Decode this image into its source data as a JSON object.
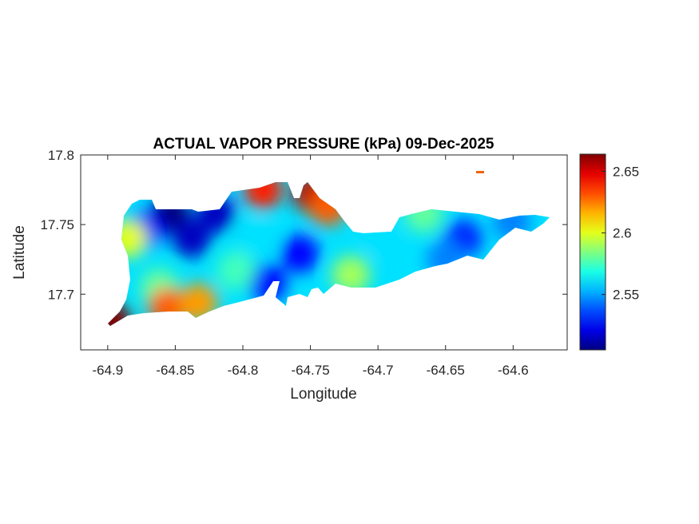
{
  "chart_data": {
    "type": "heatmap",
    "title": "ACTUAL VAPOR PRESSURE (kPa) 09-Dec-2025",
    "xlabel": "Longitude",
    "ylabel": "Latitude",
    "xlim": [
      -64.92,
      -64.56
    ],
    "ylim": [
      17.66,
      17.8
    ],
    "xticks": [
      -64.9,
      -64.85,
      -64.8,
      -64.75,
      -64.7,
      -64.65,
      -64.6
    ],
    "xtick_labels": [
      "-64.9",
      "-64.85",
      "-64.8",
      "-64.75",
      "-64.7",
      "-64.65",
      "-64.6"
    ],
    "yticks": [
      17.7,
      17.75,
      17.8
    ],
    "ytick_labels": [
      "17.7",
      "17.75",
      "17.8"
    ],
    "colormap": "jet",
    "colorbar": {
      "clim": [
        2.505,
        2.664
      ],
      "ticks": [
        2.55,
        2.6,
        2.65
      ],
      "tick_labels": [
        "2.55",
        "2.6",
        "2.65"
      ],
      "location": "right"
    },
    "grid": false,
    "background_value": 2.56,
    "points": [
      {
        "lon": -64.853,
        "lat": 17.758,
        "value": 2.505
      },
      {
        "lon": -64.838,
        "lat": 17.74,
        "value": 2.515
      },
      {
        "lon": -64.82,
        "lat": 17.758,
        "value": 2.515
      },
      {
        "lon": -64.873,
        "lat": 17.746,
        "value": 2.525
      },
      {
        "lon": -64.79,
        "lat": 17.74,
        "value": 2.56
      },
      {
        "lon": -64.758,
        "lat": 17.729,
        "value": 2.525
      },
      {
        "lon": -64.782,
        "lat": 17.708,
        "value": 2.525
      },
      {
        "lon": -64.749,
        "lat": 17.772,
        "value": 2.655
      },
      {
        "lon": -64.785,
        "lat": 17.775,
        "value": 2.64
      },
      {
        "lon": -64.737,
        "lat": 17.763,
        "value": 2.63
      },
      {
        "lon": -64.72,
        "lat": 17.714,
        "value": 2.59
      },
      {
        "lon": -64.862,
        "lat": 17.705,
        "value": 2.58
      },
      {
        "lon": -64.856,
        "lat": 17.691,
        "value": 2.63
      },
      {
        "lon": -64.833,
        "lat": 17.694,
        "value": 2.62
      },
      {
        "lon": -64.897,
        "lat": 17.681,
        "value": 2.664
      },
      {
        "lon": -64.696,
        "lat": 17.74,
        "value": 2.56
      },
      {
        "lon": -64.637,
        "lat": 17.74,
        "value": 2.53
      },
      {
        "lon": -64.601,
        "lat": 17.752,
        "value": 2.545
      },
      {
        "lon": -64.624,
        "lat": 17.789,
        "value": 2.63
      },
      {
        "lon": -64.885,
        "lat": 17.74,
        "value": 2.6
      },
      {
        "lon": -64.666,
        "lat": 17.758,
        "value": 2.58
      },
      {
        "lon": -64.805,
        "lat": 17.717,
        "value": 2.575
      },
      {
        "lon": -64.65,
        "lat": 17.725,
        "value": 2.545
      }
    ]
  }
}
